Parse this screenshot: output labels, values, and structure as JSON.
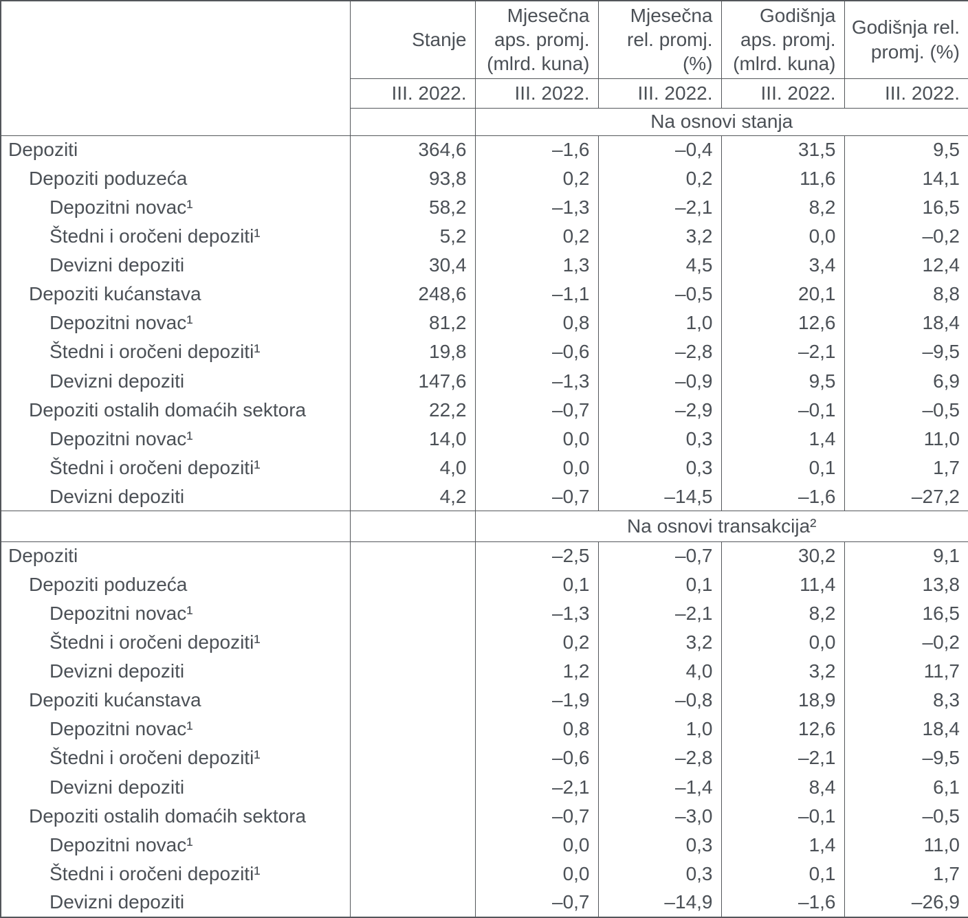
{
  "colors": {
    "text": "#4b5056",
    "border": "#53565a",
    "background": "#ffffff"
  },
  "table": {
    "period": "III. 2022.",
    "columns": [
      {
        "lines": [
          "Stanje"
        ]
      },
      {
        "lines": [
          "Mjesečna",
          "aps. promj.",
          "(mlrd. kuna)"
        ]
      },
      {
        "lines": [
          "Mjesečna",
          "rel. promj.",
          "(%)"
        ]
      },
      {
        "lines": [
          "Godišnja",
          "aps. promj.",
          "(mlrd. kuna)"
        ]
      },
      {
        "lines": [
          "Godišnja rel.",
          "promj. (%)"
        ]
      }
    ],
    "sections": [
      {
        "band": "Na osnovi stanja",
        "rows": [
          {
            "label": "Depoziti",
            "indent": 0,
            "values": [
              "364,6",
              "–1,6",
              "–0,4",
              "31,5",
              "9,5"
            ]
          },
          {
            "label": "Depoziti poduzeća",
            "indent": 1,
            "values": [
              "93,8",
              "0,2",
              "0,2",
              "11,6",
              "14,1"
            ]
          },
          {
            "label": "Depozitni novac¹",
            "indent": 2,
            "values": [
              "58,2",
              "–1,3",
              "–2,1",
              "8,2",
              "16,5"
            ]
          },
          {
            "label": "Štedni i oročeni depoziti¹",
            "indent": 2,
            "values": [
              "5,2",
              "0,2",
              "3,2",
              "0,0",
              "–0,2"
            ]
          },
          {
            "label": "Devizni depoziti",
            "indent": 2,
            "values": [
              "30,4",
              "1,3",
              "4,5",
              "3,4",
              "12,4"
            ]
          },
          {
            "label": "Depoziti kućanstava",
            "indent": 1,
            "values": [
              "248,6",
              "–1,1",
              "–0,5",
              "20,1",
              "8,8"
            ]
          },
          {
            "label": "Depozitni novac¹",
            "indent": 2,
            "values": [
              "81,2",
              "0,8",
              "1,0",
              "12,6",
              "18,4"
            ]
          },
          {
            "label": "Štedni i oročeni depoziti¹",
            "indent": 2,
            "values": [
              "19,8",
              "–0,6",
              "–2,8",
              "–2,1",
              "–9,5"
            ]
          },
          {
            "label": "Devizni depoziti",
            "indent": 2,
            "values": [
              "147,6",
              "–1,3",
              "–0,9",
              "9,5",
              "6,9"
            ]
          },
          {
            "label": "Depoziti ostalih domaćih sektora",
            "indent": 1,
            "values": [
              "22,2",
              "–0,7",
              "–2,9",
              "–0,1",
              "–0,5"
            ]
          },
          {
            "label": "Depozitni novac¹",
            "indent": 2,
            "values": [
              "14,0",
              "0,0",
              "0,3",
              "1,4",
              "11,0"
            ]
          },
          {
            "label": "Štedni i oročeni depoziti¹",
            "indent": 2,
            "values": [
              "4,0",
              "0,0",
              "0,3",
              "0,1",
              "1,7"
            ]
          },
          {
            "label": "Devizni depoziti",
            "indent": 2,
            "values": [
              "4,2",
              "–0,7",
              "–14,5",
              "–1,6",
              "–27,2"
            ]
          }
        ]
      },
      {
        "band": "Na osnovi transakcija²",
        "rows": [
          {
            "label": "Depoziti",
            "indent": 0,
            "values": [
              "",
              "–2,5",
              "–0,7",
              "30,2",
              "9,1"
            ]
          },
          {
            "label": "Depoziti poduzeća",
            "indent": 1,
            "values": [
              "",
              "0,1",
              "0,1",
              "11,4",
              "13,8"
            ]
          },
          {
            "label": "Depozitni novac¹",
            "indent": 2,
            "values": [
              "",
              "–1,3",
              "–2,1",
              "8,2",
              "16,5"
            ]
          },
          {
            "label": "Štedni i oročeni depoziti¹",
            "indent": 2,
            "values": [
              "",
              "0,2",
              "3,2",
              "0,0",
              "–0,2"
            ]
          },
          {
            "label": "Devizni depoziti",
            "indent": 2,
            "values": [
              "",
              "1,2",
              "4,0",
              "3,2",
              "11,7"
            ]
          },
          {
            "label": "Depoziti kućanstava",
            "indent": 1,
            "values": [
              "",
              "–1,9",
              "–0,8",
              "18,9",
              "8,3"
            ]
          },
          {
            "label": "Depozitni novac¹",
            "indent": 2,
            "values": [
              "",
              "0,8",
              "1,0",
              "12,6",
              "18,4"
            ]
          },
          {
            "label": "Štedni i oročeni depoziti¹",
            "indent": 2,
            "values": [
              "",
              "–0,6",
              "–2,8",
              "–2,1",
              "–9,5"
            ]
          },
          {
            "label": "Devizni depoziti",
            "indent": 2,
            "values": [
              "",
              "–2,1",
              "–1,4",
              "8,4",
              "6,1"
            ]
          },
          {
            "label": "Depoziti ostalih domaćih sektora",
            "indent": 1,
            "values": [
              "",
              "–0,7",
              "–3,0",
              "–0,1",
              "–0,5"
            ]
          },
          {
            "label": "Depozitni novac¹",
            "indent": 2,
            "values": [
              "",
              "0,0",
              "0,3",
              "1,4",
              "11,0"
            ]
          },
          {
            "label": "Štedni i oročeni depoziti¹",
            "indent": 2,
            "values": [
              "",
              "0,0",
              "0,3",
              "0,1",
              "1,7"
            ]
          },
          {
            "label": "Devizni depoziti",
            "indent": 2,
            "values": [
              "",
              "–0,7",
              "–14,9",
              "–1,6",
              "–26,9"
            ]
          }
        ]
      }
    ]
  }
}
